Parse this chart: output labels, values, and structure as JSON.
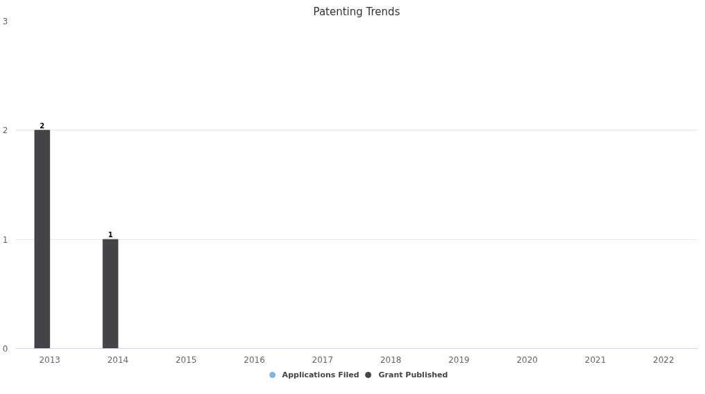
{
  "chart_data": {
    "type": "bar",
    "title": "Patenting Trends",
    "categories": [
      "2013",
      "2014",
      "2015",
      "2016",
      "2017",
      "2018",
      "2019",
      "2020",
      "2021",
      "2022"
    ],
    "series": [
      {
        "name": "Grant Published",
        "color": "#434348",
        "values": [
          2,
          1,
          null,
          null,
          null,
          null,
          null,
          null,
          null,
          null
        ]
      },
      {
        "name": "Applications Filed",
        "color": "#7cb5ec",
        "values": [
          null,
          null,
          null,
          null,
          null,
          null,
          null,
          null,
          null,
          null
        ]
      }
    ],
    "ylim": [
      0,
      3
    ],
    "yticks": [
      0,
      1,
      2,
      3
    ],
    "grid": "y",
    "legend": "bottom",
    "data_labels": true
  }
}
